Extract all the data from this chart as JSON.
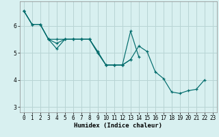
{
  "xlabel": "Humidex (Indice chaleur)",
  "bg_color": "#d8f0f0",
  "grid_color": "#b8d4d4",
  "line_color": "#006b6b",
  "xlim": [
    -0.5,
    23.5
  ],
  "ylim": [
    2.8,
    6.9
  ],
  "yticks": [
    3,
    4,
    5,
    6
  ],
  "xticks": [
    0,
    1,
    2,
    3,
    4,
    5,
    6,
    7,
    8,
    9,
    10,
    11,
    12,
    13,
    14,
    15,
    16,
    17,
    18,
    19,
    20,
    21,
    22,
    23
  ],
  "series1": [
    6.55,
    6.05,
    6.05,
    5.5,
    5.35,
    5.5,
    5.5,
    5.5,
    5.5,
    5.0,
    4.55,
    4.55,
    4.55,
    4.75,
    5.25,
    5.05,
    4.3,
    4.05,
    3.55,
    3.5,
    3.6,
    3.65,
    4.0,
    null
  ],
  "series2": [
    6.55,
    6.05,
    6.05,
    5.5,
    5.15,
    5.5,
    5.5,
    5.5,
    5.5,
    5.0,
    4.55,
    4.55,
    4.55,
    5.8,
    4.85,
    null,
    null,
    null,
    null,
    null,
    null,
    null,
    null,
    null
  ],
  "series3": [
    6.55,
    6.05,
    6.05,
    5.5,
    5.5,
    5.5,
    5.5,
    5.5,
    5.5,
    5.05,
    4.55,
    4.55,
    4.55,
    4.75,
    null,
    null,
    null,
    null,
    null,
    null,
    null,
    null,
    null,
    null
  ],
  "tick_fontsize": 5.5,
  "xlabel_fontsize": 6.5
}
